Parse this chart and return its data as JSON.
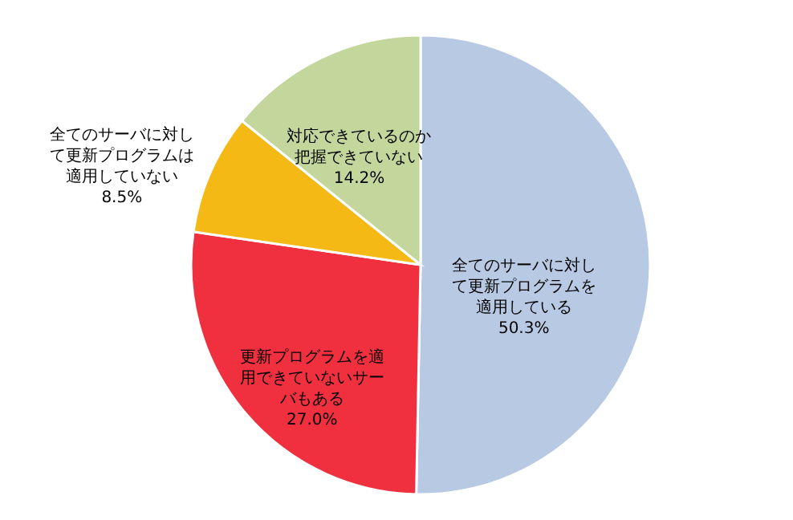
{
  "chart_data": {
    "type": "pie",
    "categories": [
      "全てのサーバに対して更新プログラムを適用している",
      "更新プログラムを適用できていないサーバもある",
      "全てのサーバに対して更新プログラムは適用していない",
      "対応できているのか把握できていない"
    ],
    "values": [
      50.3,
      27.0,
      8.5,
      14.2
    ],
    "value_labels": [
      "50.3%",
      "27.0%",
      "8.5%",
      "14.2%"
    ],
    "colors": [
      "#b7c9e3",
      "#f0303f",
      "#f5b916",
      "#c3d79c"
    ]
  }
}
